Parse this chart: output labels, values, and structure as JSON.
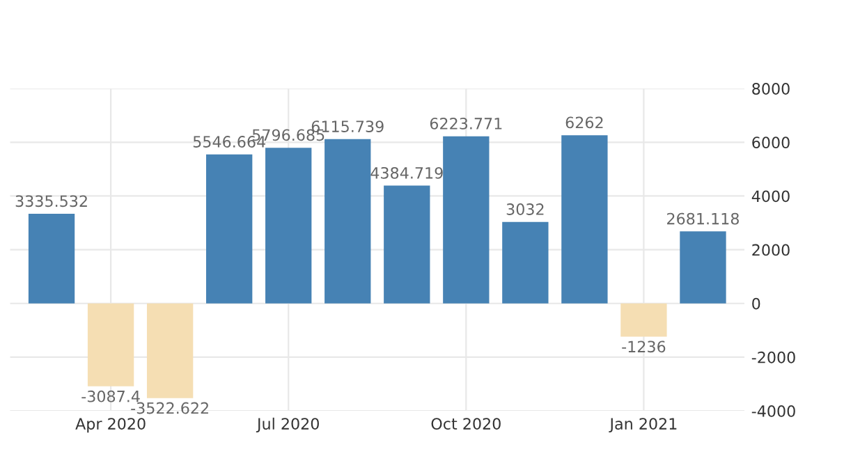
{
  "chart_data": {
    "type": "bar",
    "categories": [
      null,
      "Apr 2020",
      null,
      null,
      "Jul 2020",
      null,
      null,
      "Oct 2020",
      null,
      null,
      "Jan 2021",
      null
    ],
    "values": [
      3335.532,
      -3087.4,
      -3522.622,
      5546.664,
      5796.685,
      6115.739,
      4384.719,
      6223.771,
      3032,
      6262,
      -1236,
      2681.118
    ],
    "colors": [
      "#4682b4",
      "#f5deb3",
      "#f5deb3",
      "#4682b4",
      "#4682b4",
      "#4682b4",
      "#4682b4",
      "#4682b4",
      "#4682b4",
      "#4682b4",
      "#f5deb3",
      "#4682b4"
    ],
    "ylim": [
      -4000,
      8000
    ],
    "yticks": [
      -4000,
      -2000,
      0,
      2000,
      4000,
      6000,
      8000
    ],
    "grid": true,
    "data_labels": true
  }
}
